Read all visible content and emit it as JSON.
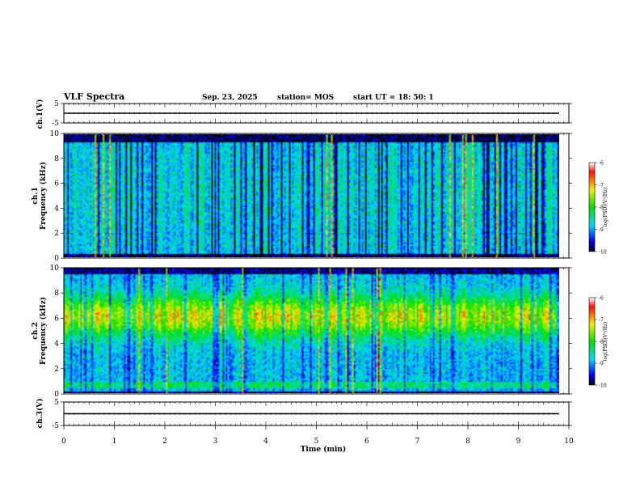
{
  "header": {
    "title": "VLF Spectra",
    "date": "Sep. 23, 2025",
    "station": "station= MOS",
    "start_ut": "start  UT =   18: 50: 1"
  },
  "colors": {
    "spectrum_black": "#000000",
    "spectrum_blue": "#0000ff",
    "spectrum_cyan": "#00d8ff",
    "spectrum_green": "#00e000",
    "spectrum_yellow": "#f0f000",
    "spectrum_red": "#ff1000",
    "colorbar_pink_top": "#ffffff"
  },
  "chart_data": [
    {
      "type": "line",
      "ylabel": "ch.1(V)",
      "xlim": [
        0,
        10
      ],
      "ylim": [
        -5,
        5
      ],
      "yticks": [
        "5",
        "-5"
      ],
      "series": [
        {
          "x": [
            0,
            9.8
          ],
          "y": [
            0,
            0
          ]
        }
      ]
    },
    {
      "type": "heatmap",
      "ylabel": "ch.1\nFrequency (kHz)",
      "xlim": [
        0,
        10
      ],
      "ylim": [
        0,
        10
      ],
      "yticks": [
        "0",
        "2",
        "4",
        "6",
        "8",
        "10"
      ],
      "data_extent_min": 9.8,
      "colorbar": {
        "label": "log(PSD)(V²/Hz)",
        "range": [
          -10,
          -6
        ],
        "ticks": [
          "-6",
          "-7",
          "-8",
          "-9",
          "-10"
        ]
      }
    },
    {
      "type": "heatmap",
      "ylabel": "ch.2\nFrequency (kHz)",
      "xlim": [
        0,
        10
      ],
      "ylim": [
        0,
        10
      ],
      "yticks": [
        "0",
        "2",
        "4",
        "6",
        "8",
        "10"
      ],
      "data_extent_min": 9.8,
      "colorbar": {
        "label": "log(PSD)(V²/Hz)",
        "range": [
          -10,
          -6
        ],
        "ticks": [
          "-6",
          "-7",
          "-8",
          "-9",
          "-10"
        ]
      }
    },
    {
      "type": "line",
      "ylabel": "ch.3(V)",
      "xlim": [
        0,
        10
      ],
      "ylim": [
        -5,
        5
      ],
      "yticks": [
        "5",
        "-5"
      ],
      "series": [
        {
          "x": [
            0,
            9.8
          ],
          "y": [
            0,
            0
          ]
        }
      ]
    }
  ],
  "xaxis": {
    "label": "Time  (min)",
    "ticks": [
      "0",
      "1",
      "2",
      "3",
      "4",
      "5",
      "6",
      "7",
      "8",
      "9",
      "10"
    ]
  }
}
